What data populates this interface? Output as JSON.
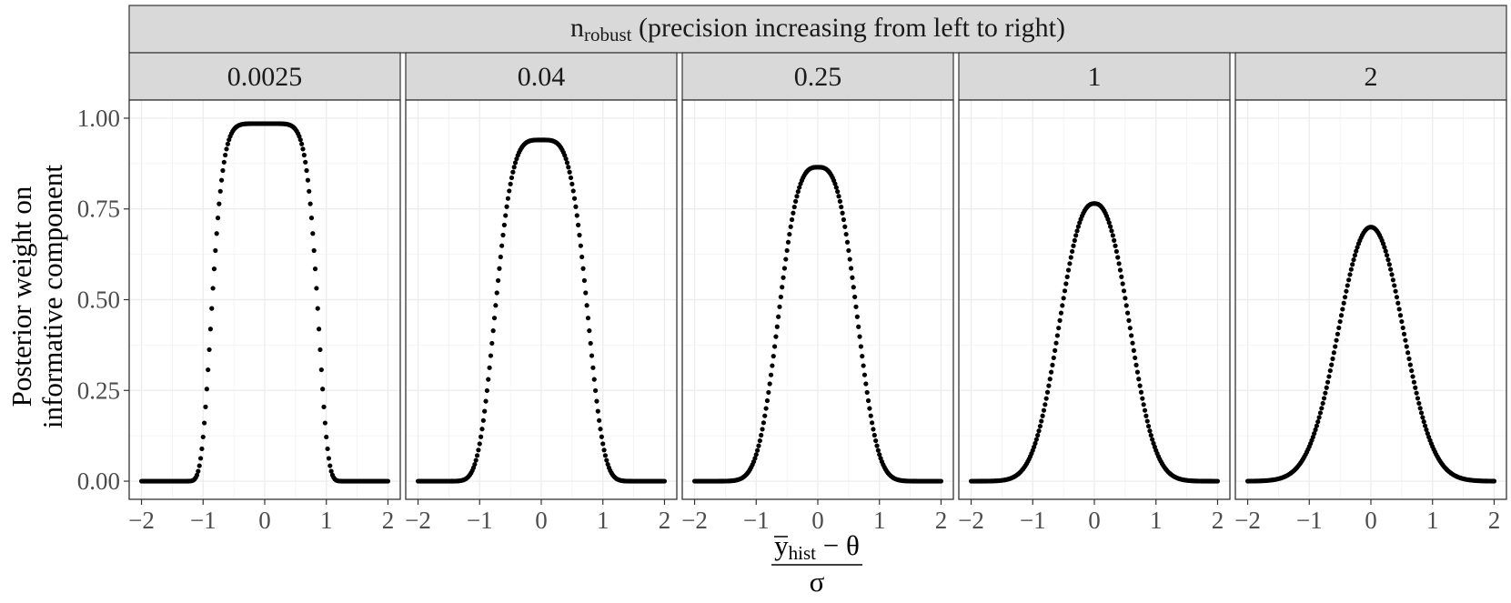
{
  "chart_data": {
    "type": "scatter",
    "facet_title": {
      "base": "n",
      "subscript": "robust",
      "rest": " (precision increasing from left to right)"
    },
    "panels": [
      {
        "label": "0.0025",
        "peak": 0.985
      },
      {
        "label": "0.04",
        "peak": 0.94
      },
      {
        "label": "0.25",
        "peak": 0.865
      },
      {
        "label": "1",
        "peak": 0.765
      },
      {
        "label": "2",
        "peak": 0.7
      }
    ],
    "x_ticks": [
      "−2",
      "−1",
      "0",
      "1",
      "2"
    ],
    "x_tick_values": [
      -2,
      -1,
      0,
      1,
      2
    ],
    "xlim": [
      -2.2,
      2.2
    ],
    "ylim": [
      -0.05,
      1.05
    ],
    "y_ticks": [
      "0.00",
      "0.25",
      "0.50",
      "0.75",
      "1.00"
    ],
    "y_tick_values": [
      0,
      0.25,
      0.5,
      0.75,
      1.0
    ],
    "ylabel_line1": "Posterior weight on",
    "ylabel_line2": "informative component",
    "xlabel_numerator_bar": "y",
    "xlabel_numerator_sub": "hist",
    "xlabel_numerator_rest": " − θ",
    "xlabel_denominator": "σ",
    "points_per_panel": 201,
    "colors": {
      "strip": "#d9d9d9",
      "grid": "#ebebeb",
      "point": "#000000",
      "axis_text": "#4d4d4d"
    }
  }
}
